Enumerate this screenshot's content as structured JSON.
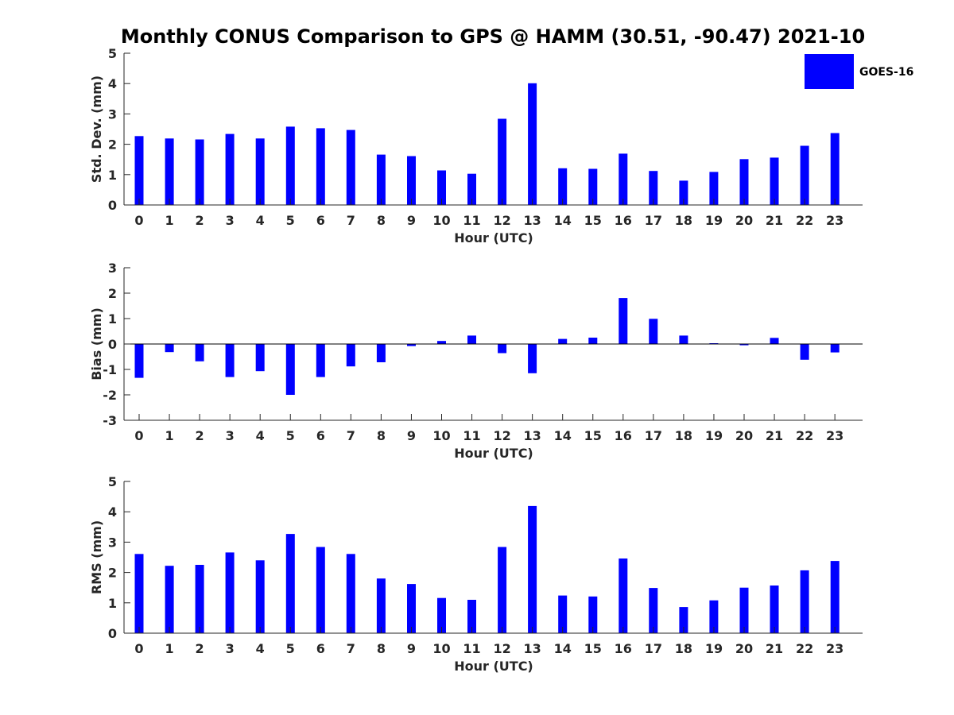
{
  "figure": {
    "title": "Monthly CONUS Comparison to GPS @ HAMM (30.51, -90.47) 2021-10",
    "legend": {
      "label": "GOES-16",
      "placement": "top-right"
    },
    "bar_color": "#0000ff",
    "axis_color": "#262626"
  },
  "chart_data": [
    {
      "type": "bar",
      "name": "std",
      "xlabel": "Hour (UTC)",
      "ylabel": "Std. Dev. (mm)",
      "ylim": [
        0,
        5
      ],
      "yticks": [
        0,
        1,
        2,
        3,
        4,
        5
      ],
      "categories": [
        "0",
        "1",
        "2",
        "3",
        "4",
        "5",
        "6",
        "7",
        "8",
        "9",
        "10",
        "11",
        "12",
        "13",
        "14",
        "15",
        "16",
        "17",
        "18",
        "19",
        "20",
        "21",
        "22",
        "23"
      ],
      "series": [
        {
          "name": "GOES-16",
          "values": [
            2.27,
            2.19,
            2.16,
            2.34,
            2.19,
            2.58,
            2.53,
            2.47,
            1.66,
            1.61,
            1.14,
            1.03,
            2.84,
            4.01,
            1.21,
            1.19,
            1.69,
            1.12,
            0.8,
            1.09,
            1.51,
            1.56,
            1.95,
            2.37
          ]
        }
      ],
      "legend": true
    },
    {
      "type": "bar",
      "name": "bias",
      "xlabel": "Hour (UTC)",
      "ylabel": "Bias (mm)",
      "ylim": [
        -3,
        3
      ],
      "yticks": [
        -3,
        -2,
        -1,
        0,
        1,
        2,
        3
      ],
      "zero_line": true,
      "categories": [
        "0",
        "1",
        "2",
        "3",
        "4",
        "5",
        "6",
        "7",
        "8",
        "9",
        "10",
        "11",
        "12",
        "13",
        "14",
        "15",
        "16",
        "17",
        "18",
        "19",
        "20",
        "21",
        "22",
        "23"
      ],
      "series": [
        {
          "name": "GOES-16",
          "values": [
            -1.33,
            -0.32,
            -0.68,
            -1.3,
            -1.07,
            -2.0,
            -1.3,
            -0.88,
            -0.72,
            -0.08,
            0.12,
            0.33,
            -0.36,
            -1.15,
            0.2,
            0.25,
            1.81,
            0.99,
            0.33,
            0.03,
            -0.05,
            0.24,
            -0.62,
            -0.33
          ]
        }
      ],
      "legend": false
    },
    {
      "type": "bar",
      "name": "rms",
      "xlabel": "Hour (UTC)",
      "ylabel": "RMS (mm)",
      "ylim": [
        0,
        5
      ],
      "yticks": [
        0,
        1,
        2,
        3,
        4,
        5
      ],
      "categories": [
        "0",
        "1",
        "2",
        "3",
        "4",
        "5",
        "6",
        "7",
        "8",
        "9",
        "10",
        "11",
        "12",
        "13",
        "14",
        "15",
        "16",
        "17",
        "18",
        "19",
        "20",
        "21",
        "22",
        "23"
      ],
      "series": [
        {
          "name": "GOES-16",
          "values": [
            2.61,
            2.22,
            2.25,
            2.66,
            2.4,
            3.27,
            2.84,
            2.61,
            1.8,
            1.62,
            1.16,
            1.1,
            2.84,
            4.19,
            1.24,
            1.21,
            2.46,
            1.49,
            0.86,
            1.08,
            1.5,
            1.57,
            2.07,
            2.38
          ]
        }
      ],
      "legend": false
    }
  ]
}
